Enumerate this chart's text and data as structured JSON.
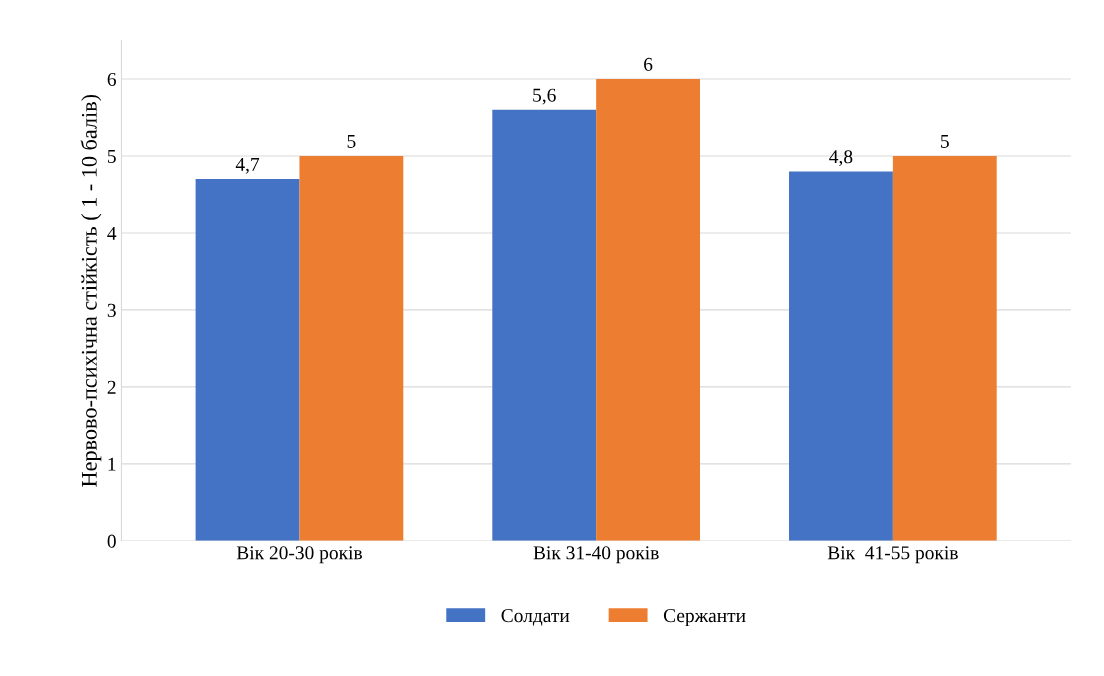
{
  "chart_data": {
    "type": "bar",
    "ylabel": "Нервово-психічна стійкість ( 1 - 10 балів)",
    "categories": [
      "Вік 20-30 років",
      "Вік 31-40 років",
      "Вік  41-55 років"
    ],
    "series": [
      {
        "name": "Солдати",
        "color": "#4472c4",
        "values": [
          4.7,
          5.6,
          4.8
        ],
        "value_labels": [
          "4,7",
          "5,6",
          "4,8"
        ]
      },
      {
        "name": "Сержанти",
        "color": "#ed7d31",
        "values": [
          5,
          6,
          5
        ],
        "value_labels": [
          "5",
          "6",
          "5"
        ]
      }
    ],
    "ylim": [
      0,
      6.5
    ],
    "yticks": [
      0,
      1,
      2,
      3,
      4,
      5,
      6
    ],
    "grid": "y",
    "legend": "bottom"
  }
}
